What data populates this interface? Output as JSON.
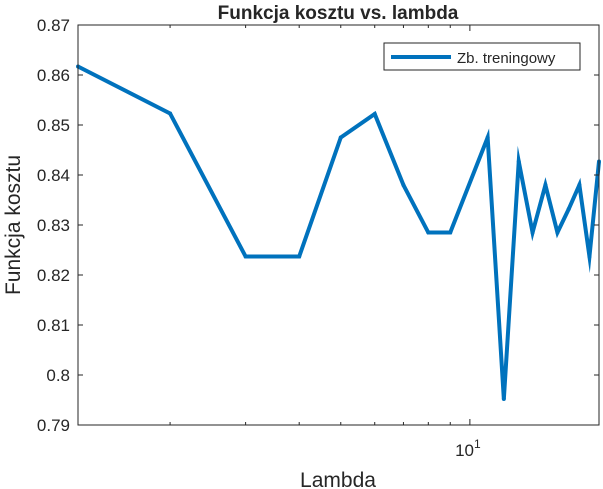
{
  "chart_data": {
    "type": "line",
    "title": "Funkcja kosztu vs. lambda",
    "xlabel": "Lambda",
    "ylabel": "Funkcja kosztu",
    "xscale": "log",
    "xlim": [
      1.22,
      20
    ],
    "ylim": [
      0.79,
      0.87
    ],
    "yticks": [
      "0.79",
      "0.8",
      "0.81",
      "0.82",
      "0.83",
      "0.84",
      "0.85",
      "0.86",
      "0.87"
    ],
    "xticks": [
      {
        "base": "10",
        "exp": "1",
        "value": 10
      }
    ],
    "grid": false,
    "legend_position": "top-right",
    "series": [
      {
        "name": "Zb. treningowy",
        "color": "#0072bd",
        "x": [
          1.22,
          2.0,
          3.0,
          4.0,
          5.0,
          6.0,
          7.0,
          8.0,
          9.0,
          11.0,
          12.0,
          13.0,
          14.0,
          15.0,
          16.0,
          17.0,
          18.0,
          19.0,
          20.0
        ],
        "y": [
          0.8617,
          0.8523,
          0.8237,
          0.8237,
          0.8475,
          0.8522,
          0.838,
          0.8285,
          0.8285,
          0.8475,
          0.7952,
          0.8427,
          0.8285,
          0.838,
          0.8285,
          0.8332,
          0.838,
          0.8237,
          0.8427
        ]
      }
    ]
  }
}
